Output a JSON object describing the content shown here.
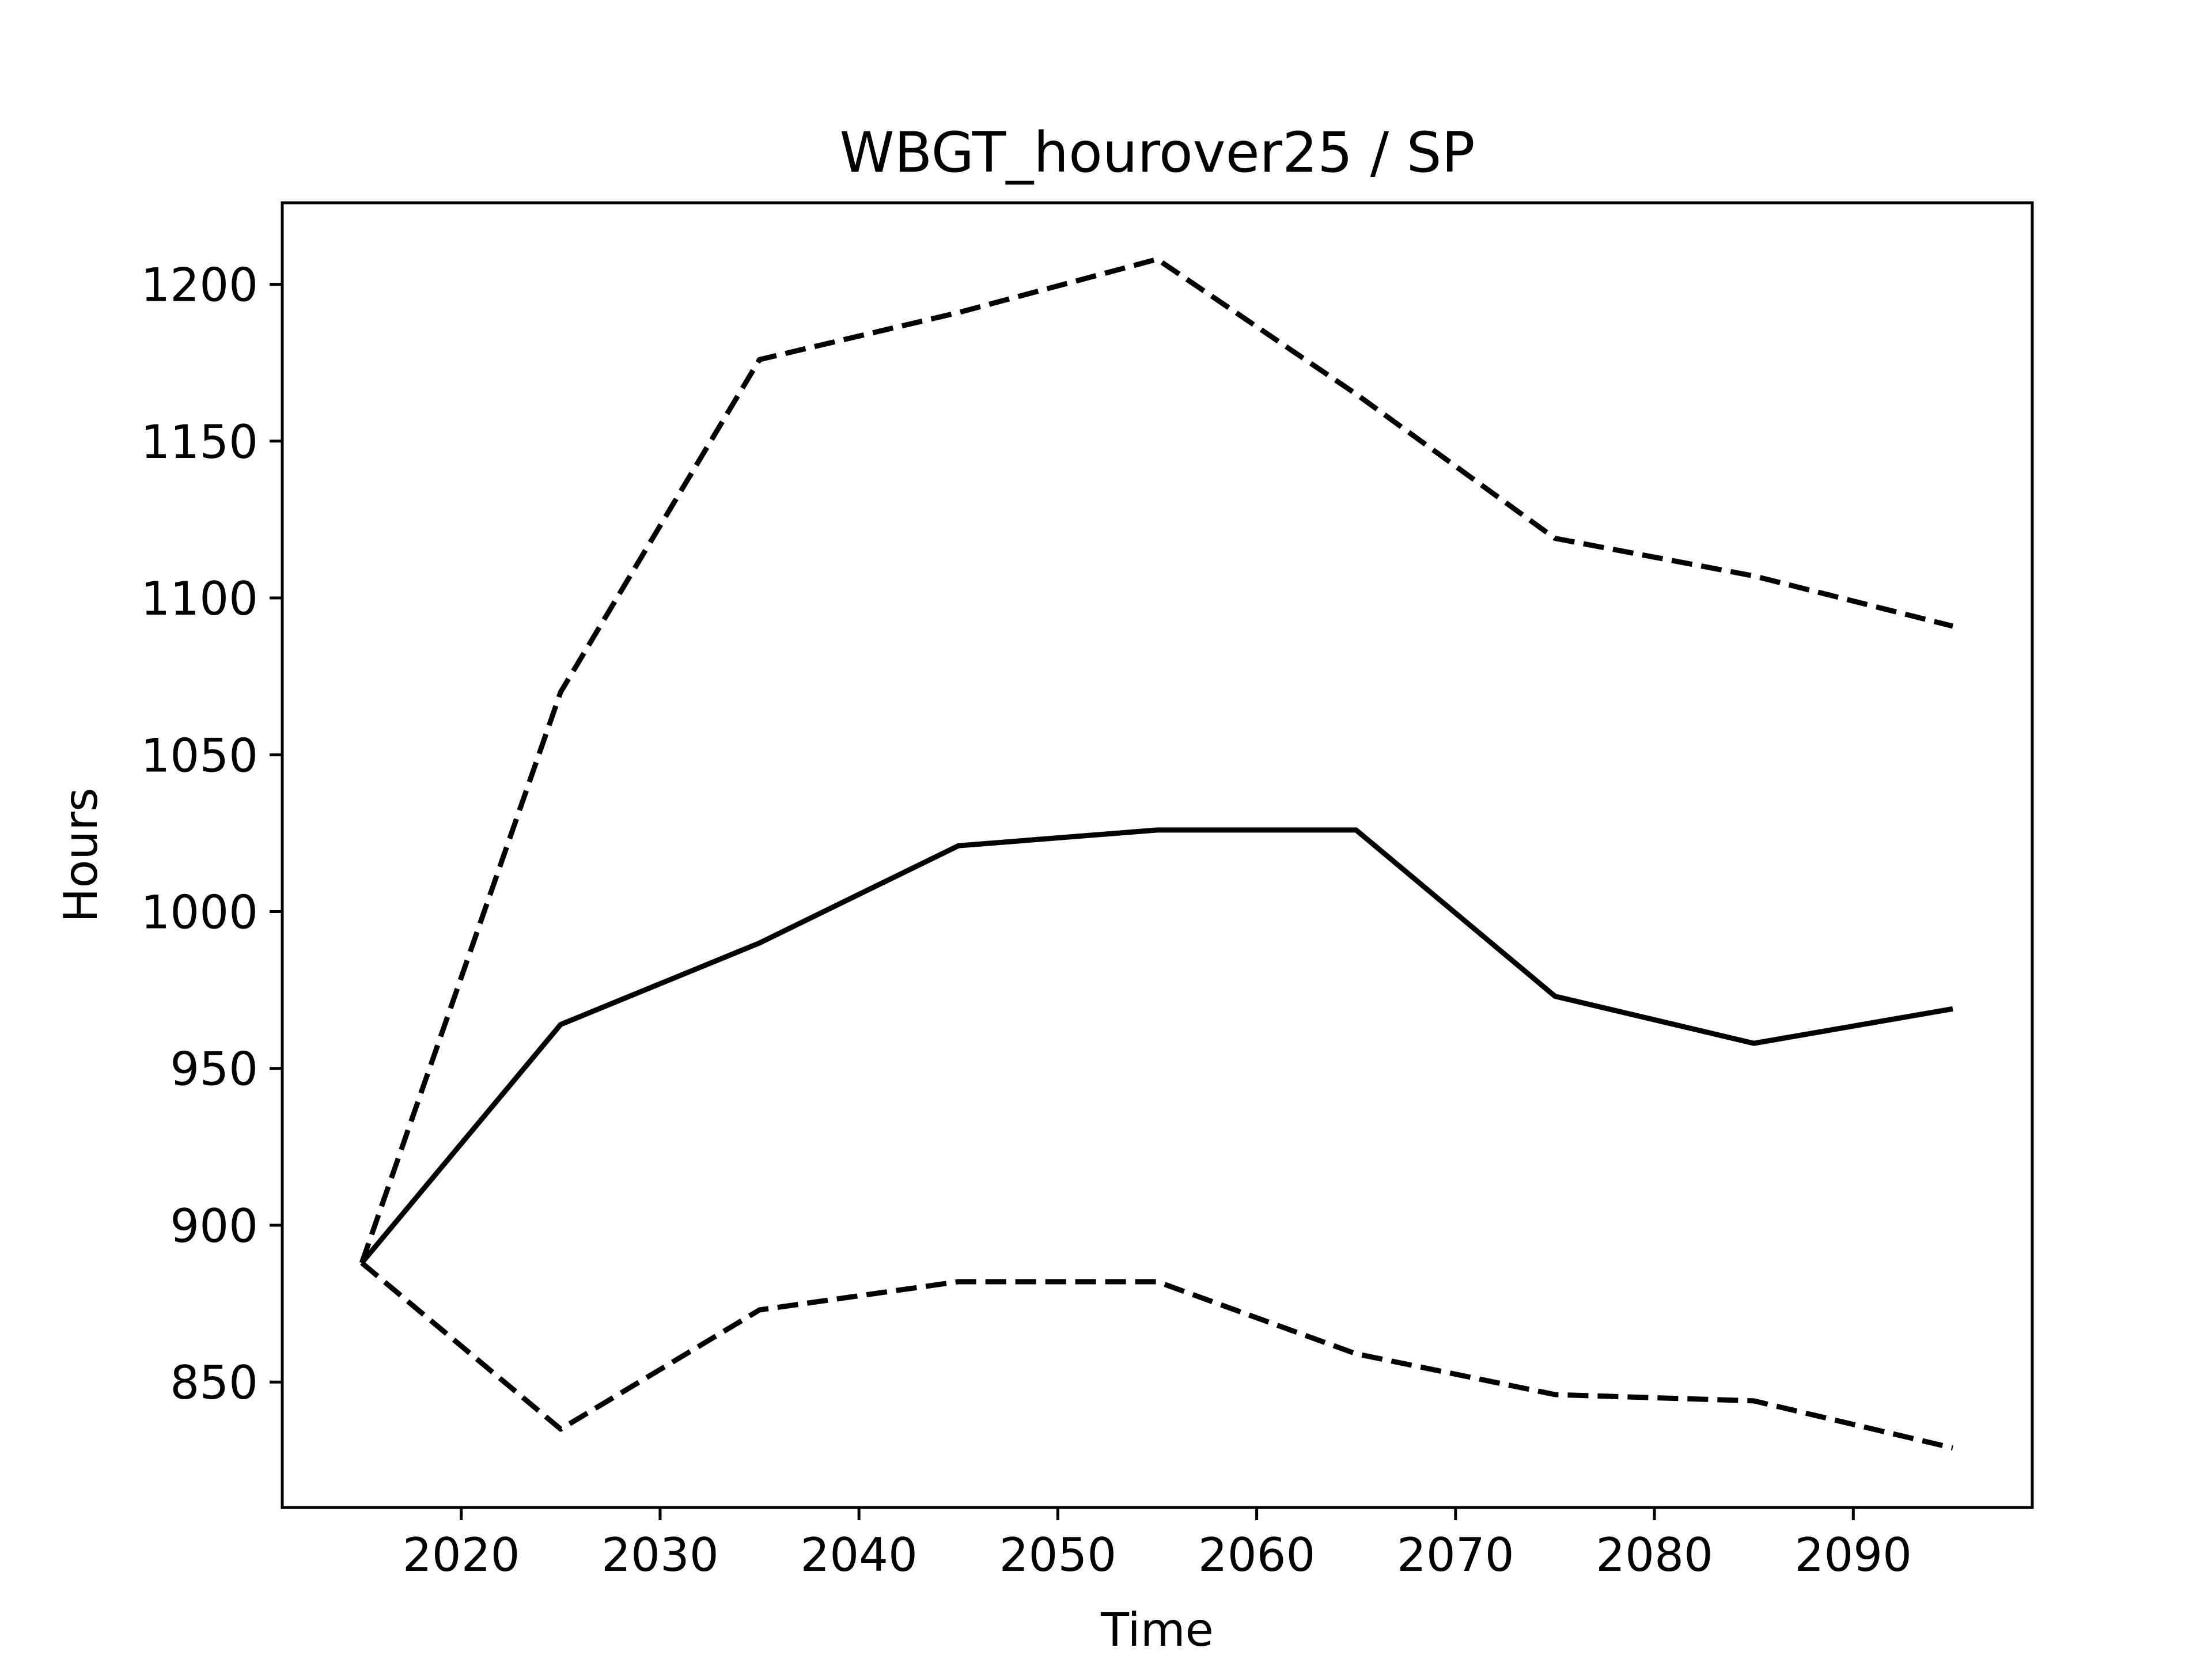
{
  "chart_data": {
    "type": "line",
    "title": "WBGT_hourover25 / SP",
    "xlabel": "Time",
    "ylabel": "Hours",
    "xlim": [
      2011,
      2099
    ],
    "ylim": [
      810,
      1226
    ],
    "xticks": [
      2020,
      2030,
      2040,
      2050,
      2060,
      2070,
      2080,
      2090
    ],
    "yticks": [
      850,
      900,
      950,
      1000,
      1050,
      1100,
      1150,
      1200
    ],
    "grid": false,
    "legend": "none",
    "x": [
      2015,
      2025,
      2035,
      2045,
      2055,
      2065,
      2075,
      2085,
      2095
    ],
    "series": [
      {
        "style": "solid",
        "color": "#000000",
        "values": [
          888,
          964,
          990,
          1021,
          1026,
          1026,
          973,
          958,
          969
        ]
      },
      {
        "style": "dashed",
        "color": "#000000",
        "values": [
          888,
          1070,
          1176,
          1191,
          1208,
          1165,
          1119,
          1107,
          1091
        ]
      },
      {
        "style": "dashed",
        "color": "#000000",
        "values": [
          888,
          835,
          873,
          882,
          882,
          859,
          846,
          844,
          829
        ]
      }
    ]
  }
}
